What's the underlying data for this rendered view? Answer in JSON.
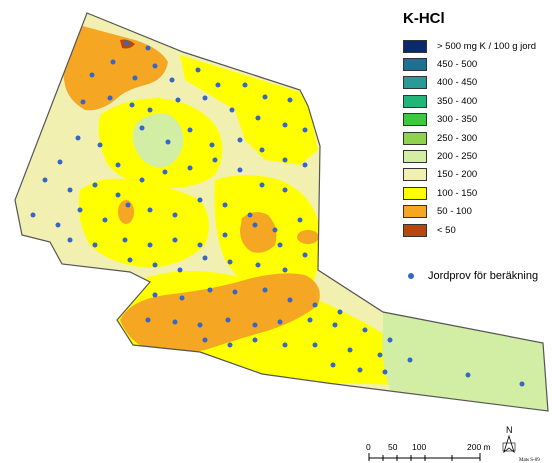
{
  "legend": {
    "title": "K-HCl",
    "classes": [
      {
        "label": "> 500 mg K / 100 g jord",
        "color": "#0b2a6e"
      },
      {
        "label": "450 - 500",
        "color": "#1f6f92"
      },
      {
        "label": "400 - 450",
        "color": "#2a9a99"
      },
      {
        "label": "350 - 400",
        "color": "#22b57a"
      },
      {
        "label": "300 - 350",
        "color": "#3ec83e"
      },
      {
        "label": "250 - 300",
        "color": "#8ed24e"
      },
      {
        "label": "200 - 250",
        "color": "#d2eda4"
      },
      {
        "label": "150 - 200",
        "color": "#f2f0b0"
      },
      {
        "label": "100 - 150",
        "color": "#ffff00"
      },
      {
        "label": "50 - 100",
        "color": "#f5a623"
      },
      {
        "label": "< 50",
        "color": "#b5480d"
      }
    ]
  },
  "sample_legend": {
    "label": "Jordprov för beräkning",
    "color": "#3566c8"
  },
  "scale_bar": {
    "labels": [
      "0",
      "50",
      "100",
      "200 m"
    ]
  },
  "north_arrow": {
    "label": "N"
  },
  "credit": "Mats S-09"
}
